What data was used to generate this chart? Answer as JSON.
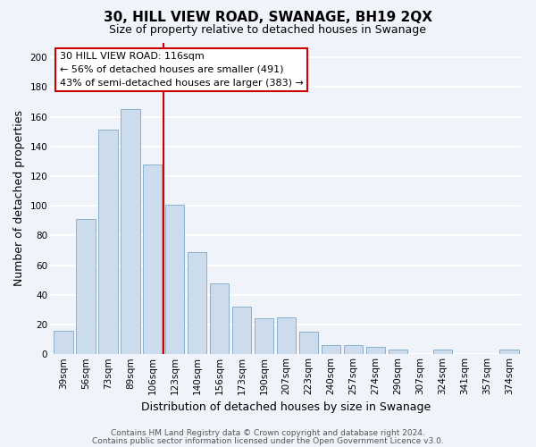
{
  "title": "30, HILL VIEW ROAD, SWANAGE, BH19 2QX",
  "subtitle": "Size of property relative to detached houses in Swanage",
  "xlabel": "Distribution of detached houses by size in Swanage",
  "ylabel": "Number of detached properties",
  "bar_labels": [
    "39sqm",
    "56sqm",
    "73sqm",
    "89sqm",
    "106sqm",
    "123sqm",
    "140sqm",
    "156sqm",
    "173sqm",
    "190sqm",
    "207sqm",
    "223sqm",
    "240sqm",
    "257sqm",
    "274sqm",
    "290sqm",
    "307sqm",
    "324sqm",
    "341sqm",
    "357sqm",
    "374sqm"
  ],
  "bar_values": [
    16,
    91,
    151,
    165,
    128,
    101,
    69,
    48,
    32,
    24,
    25,
    15,
    6,
    6,
    5,
    3,
    0,
    3,
    0,
    0,
    3
  ],
  "bar_color": "#ccdcec",
  "bar_edge_color": "#8ab0cc",
  "vline_color": "#cc0000",
  "annotation_line1": "30 HILL VIEW ROAD: 116sqm",
  "annotation_line2": "← 56% of detached houses are smaller (491)",
  "annotation_line3": "43% of semi-detached houses are larger (383) →",
  "annotation_box_color": "#ffffff",
  "annotation_box_edge_color": "#cc0000",
  "ylim": [
    0,
    210
  ],
  "yticks": [
    0,
    20,
    40,
    60,
    80,
    100,
    120,
    140,
    160,
    180,
    200
  ],
  "footer_line1": "Contains HM Land Registry data © Crown copyright and database right 2024.",
  "footer_line2": "Contains public sector information licensed under the Open Government Licence v3.0.",
  "background_color": "#f0f4fa",
  "plot_bg_color": "#f0f4fa",
  "grid_color": "#ffffff",
  "title_fontsize": 11,
  "subtitle_fontsize": 9,
  "axis_label_fontsize": 9,
  "tick_fontsize": 7.5,
  "annotation_fontsize": 8,
  "footer_fontsize": 6.5,
  "vline_bar_index": 5
}
